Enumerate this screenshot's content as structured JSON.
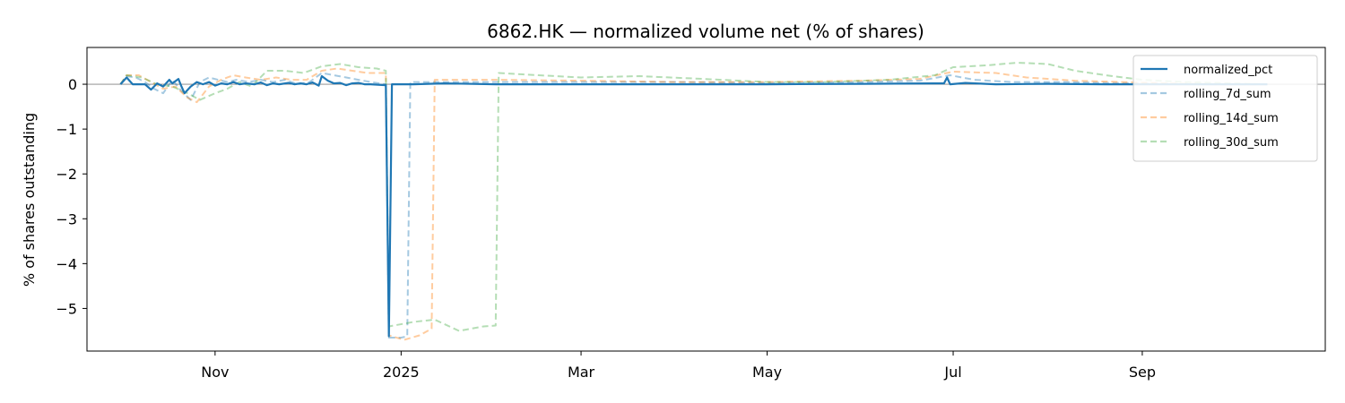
{
  "chart_data": {
    "type": "line",
    "title": "6862.HK — normalized volume net (% of shares)",
    "xlabel": "",
    "ylabel": "% of shares outstanding",
    "x_range": [
      "2024-09-20",
      "2025-10-31"
    ],
    "ylim": [
      -5.95,
      0.82
    ],
    "y_ticks": [
      0,
      -1,
      -2,
      -3,
      -4,
      -5
    ],
    "y_tick_labels": [
      "0",
      "−1",
      "−2",
      "−3",
      "−4",
      "−5"
    ],
    "x_ticks": [
      "2024-11-01",
      "2025-01-01",
      "2025-03-01",
      "2025-05-01",
      "2025-07-01",
      "2025-09-01"
    ],
    "x_tick_labels": [
      "Nov",
      "2025",
      "Mar",
      "May",
      "Jul",
      "Sep"
    ],
    "zero_line": true,
    "grid": false,
    "legend_position": "top-right",
    "series": [
      {
        "name": "normalized_pct",
        "color": "#1f77b4",
        "style": "solid",
        "points": [
          [
            "2024-10-01",
            0.0
          ],
          [
            "2024-10-03",
            0.15
          ],
          [
            "2024-10-05",
            0.0
          ],
          [
            "2024-10-09",
            0.0
          ],
          [
            "2024-10-11",
            -0.12
          ],
          [
            "2024-10-13",
            0.02
          ],
          [
            "2024-10-15",
            -0.05
          ],
          [
            "2024-10-17",
            0.1
          ],
          [
            "2024-10-18",
            0.02
          ],
          [
            "2024-10-20",
            0.12
          ],
          [
            "2024-10-21",
            -0.05
          ],
          [
            "2024-10-22",
            -0.2
          ],
          [
            "2024-10-24",
            -0.05
          ],
          [
            "2024-10-26",
            0.05
          ],
          [
            "2024-10-28",
            0.0
          ],
          [
            "2024-10-30",
            0.05
          ],
          [
            "2024-11-01",
            -0.03
          ],
          [
            "2024-11-03",
            0.02
          ],
          [
            "2024-11-05",
            0.0
          ],
          [
            "2024-11-07",
            0.05
          ],
          [
            "2024-11-09",
            0.0
          ],
          [
            "2024-11-11",
            0.02
          ],
          [
            "2024-11-14",
            0.0
          ],
          [
            "2024-11-16",
            0.04
          ],
          [
            "2024-11-18",
            -0.02
          ],
          [
            "2024-11-20",
            0.02
          ],
          [
            "2024-11-22",
            0.0
          ],
          [
            "2024-11-25",
            0.03
          ],
          [
            "2024-11-27",
            0.0
          ],
          [
            "2024-11-29",
            0.02
          ],
          [
            "2024-12-01",
            0.0
          ],
          [
            "2024-12-03",
            0.04
          ],
          [
            "2024-12-05",
            -0.03
          ],
          [
            "2024-12-06",
            0.18
          ],
          [
            "2024-12-08",
            0.08
          ],
          [
            "2024-12-10",
            0.02
          ],
          [
            "2024-12-12",
            0.03
          ],
          [
            "2024-12-14",
            -0.02
          ],
          [
            "2024-12-16",
            0.02
          ],
          [
            "2024-12-18",
            0.03
          ],
          [
            "2024-12-20",
            0.0
          ],
          [
            "2024-12-22",
            0.0
          ],
          [
            "2024-12-27",
            -0.02
          ],
          [
            "2024-12-28",
            -5.62
          ],
          [
            "2024-12-29",
            0.0
          ],
          [
            "2025-01-05",
            0.0
          ],
          [
            "2025-01-15",
            0.02
          ],
          [
            "2025-02-01",
            0.0
          ],
          [
            "2025-03-01",
            0.0
          ],
          [
            "2025-04-01",
            0.0
          ],
          [
            "2025-05-01",
            0.0
          ],
          [
            "2025-06-01",
            0.01
          ],
          [
            "2025-06-25",
            0.02
          ],
          [
            "2025-06-28",
            0.02
          ],
          [
            "2025-06-29",
            0.15
          ],
          [
            "2025-06-30",
            0.0
          ],
          [
            "2025-07-05",
            0.03
          ],
          [
            "2025-07-15",
            0.0
          ],
          [
            "2025-08-01",
            0.01
          ],
          [
            "2025-08-20",
            0.0
          ],
          [
            "2025-09-01",
            0.0
          ],
          [
            "2025-09-15",
            0.0
          ],
          [
            "2025-10-01",
            0.0
          ],
          [
            "2025-10-12",
            0.0
          ]
        ]
      },
      {
        "name": "rolling_7d_sum",
        "color": "#1f77b4",
        "style": "dashed",
        "alpha": 0.4,
        "points": [
          [
            "2024-10-01",
            0.0
          ],
          [
            "2024-10-03",
            0.18
          ],
          [
            "2024-10-06",
            0.15
          ],
          [
            "2024-10-09",
            0.05
          ],
          [
            "2024-10-12",
            -0.1
          ],
          [
            "2024-10-15",
            -0.2
          ],
          [
            "2024-10-18",
            0.1
          ],
          [
            "2024-10-21",
            -0.15
          ],
          [
            "2024-10-24",
            -0.35
          ],
          [
            "2024-10-27",
            0.05
          ],
          [
            "2024-10-30",
            0.15
          ],
          [
            "2024-11-02",
            0.1
          ],
          [
            "2024-11-05",
            0.05
          ],
          [
            "2024-11-08",
            0.1
          ],
          [
            "2024-11-12",
            0.05
          ],
          [
            "2024-11-16",
            0.1
          ],
          [
            "2024-11-20",
            0.05
          ],
          [
            "2024-11-24",
            0.1
          ],
          [
            "2024-11-28",
            0.0
          ],
          [
            "2024-12-02",
            0.05
          ],
          [
            "2024-12-06",
            0.25
          ],
          [
            "2024-12-10",
            0.2
          ],
          [
            "2024-12-14",
            0.15
          ],
          [
            "2024-12-18",
            0.1
          ],
          [
            "2024-12-22",
            0.05
          ],
          [
            "2024-12-27",
            0.0
          ],
          [
            "2024-12-28",
            -5.65
          ],
          [
            "2025-01-01",
            -5.65
          ],
          [
            "2025-01-03",
            -5.62
          ],
          [
            "2025-01-04",
            0.05
          ],
          [
            "2025-01-15",
            0.05
          ],
          [
            "2025-02-01",
            0.05
          ],
          [
            "2025-03-01",
            0.05
          ],
          [
            "2025-04-01",
            0.05
          ],
          [
            "2025-05-01",
            0.03
          ],
          [
            "2025-06-01",
            0.05
          ],
          [
            "2025-06-20",
            0.08
          ],
          [
            "2025-06-30",
            0.2
          ],
          [
            "2025-07-08",
            0.1
          ],
          [
            "2025-07-20",
            0.05
          ],
          [
            "2025-08-05",
            0.05
          ],
          [
            "2025-08-20",
            0.03
          ],
          [
            "2025-09-01",
            0.02
          ],
          [
            "2025-09-20",
            0.0
          ],
          [
            "2025-10-05",
            0.0
          ],
          [
            "2025-10-12",
            0.0
          ]
        ]
      },
      {
        "name": "rolling_14d_sum",
        "color": "#ff7f0e",
        "style": "dashed",
        "alpha": 0.4,
        "points": [
          [
            "2024-10-01",
            0.0
          ],
          [
            "2024-10-03",
            0.2
          ],
          [
            "2024-10-07",
            0.2
          ],
          [
            "2024-10-11",
            0.05
          ],
          [
            "2024-10-15",
            -0.1
          ],
          [
            "2024-10-19",
            -0.05
          ],
          [
            "2024-10-23",
            -0.3
          ],
          [
            "2024-10-26",
            -0.4
          ],
          [
            "2024-10-30",
            -0.05
          ],
          [
            "2024-11-03",
            0.1
          ],
          [
            "2024-11-07",
            0.2
          ],
          [
            "2024-11-11",
            0.15
          ],
          [
            "2024-11-16",
            0.1
          ],
          [
            "2024-11-21",
            0.15
          ],
          [
            "2024-11-26",
            0.1
          ],
          [
            "2024-12-01",
            0.1
          ],
          [
            "2024-12-06",
            0.3
          ],
          [
            "2024-12-11",
            0.35
          ],
          [
            "2024-12-16",
            0.3
          ],
          [
            "2024-12-21",
            0.25
          ],
          [
            "2024-12-27",
            0.25
          ],
          [
            "2024-12-28",
            -5.6
          ],
          [
            "2025-01-02",
            -5.7
          ],
          [
            "2025-01-07",
            -5.6
          ],
          [
            "2025-01-11",
            -5.45
          ],
          [
            "2025-01-12",
            0.1
          ],
          [
            "2025-01-20",
            0.1
          ],
          [
            "2025-02-01",
            0.1
          ],
          [
            "2025-03-01",
            0.08
          ],
          [
            "2025-04-01",
            0.05
          ],
          [
            "2025-05-01",
            0.05
          ],
          [
            "2025-06-01",
            0.08
          ],
          [
            "2025-06-20",
            0.12
          ],
          [
            "2025-07-01",
            0.28
          ],
          [
            "2025-07-15",
            0.25
          ],
          [
            "2025-07-25",
            0.15
          ],
          [
            "2025-08-10",
            0.08
          ],
          [
            "2025-08-25",
            0.05
          ],
          [
            "2025-09-10",
            0.02
          ],
          [
            "2025-09-25",
            0.0
          ],
          [
            "2025-10-12",
            0.0
          ]
        ]
      },
      {
        "name": "rolling_30d_sum",
        "color": "#2ca02c",
        "style": "dashed",
        "alpha": 0.35,
        "points": [
          [
            "2024-10-01",
            0.0
          ],
          [
            "2024-10-03",
            0.2
          ],
          [
            "2024-10-08",
            0.15
          ],
          [
            "2024-10-13",
            0.0
          ],
          [
            "2024-10-18",
            -0.05
          ],
          [
            "2024-10-23",
            -0.2
          ],
          [
            "2024-10-27",
            -0.35
          ],
          [
            "2024-11-01",
            -0.2
          ],
          [
            "2024-11-05",
            -0.1
          ],
          [
            "2024-11-09",
            0.05
          ],
          [
            "2024-11-13",
            -0.05
          ],
          [
            "2024-11-18",
            0.3
          ],
          [
            "2024-11-24",
            0.3
          ],
          [
            "2024-11-30",
            0.25
          ],
          [
            "2024-12-06",
            0.4
          ],
          [
            "2024-12-12",
            0.45
          ],
          [
            "2024-12-18",
            0.38
          ],
          [
            "2024-12-24",
            0.35
          ],
          [
            "2024-12-27",
            0.3
          ],
          [
            "2024-12-28",
            -5.4
          ],
          [
            "2025-01-05",
            -5.3
          ],
          [
            "2025-01-12",
            -5.25
          ],
          [
            "2025-01-20",
            -5.5
          ],
          [
            "2025-01-28",
            -5.4
          ],
          [
            "2025-02-01",
            -5.38
          ],
          [
            "2025-02-02",
            0.25
          ],
          [
            "2025-02-15",
            0.2
          ],
          [
            "2025-03-01",
            0.15
          ],
          [
            "2025-03-20",
            0.18
          ],
          [
            "2025-04-10",
            0.12
          ],
          [
            "2025-05-01",
            0.05
          ],
          [
            "2025-05-20",
            0.05
          ],
          [
            "2025-06-10",
            0.1
          ],
          [
            "2025-06-25",
            0.2
          ],
          [
            "2025-07-01",
            0.38
          ],
          [
            "2025-07-12",
            0.42
          ],
          [
            "2025-07-22",
            0.48
          ],
          [
            "2025-08-01",
            0.45
          ],
          [
            "2025-08-10",
            0.3
          ],
          [
            "2025-08-20",
            0.2
          ],
          [
            "2025-09-01",
            0.1
          ],
          [
            "2025-09-15",
            0.05
          ],
          [
            "2025-10-01",
            0.02
          ],
          [
            "2025-10-12",
            0.0
          ]
        ]
      }
    ]
  }
}
